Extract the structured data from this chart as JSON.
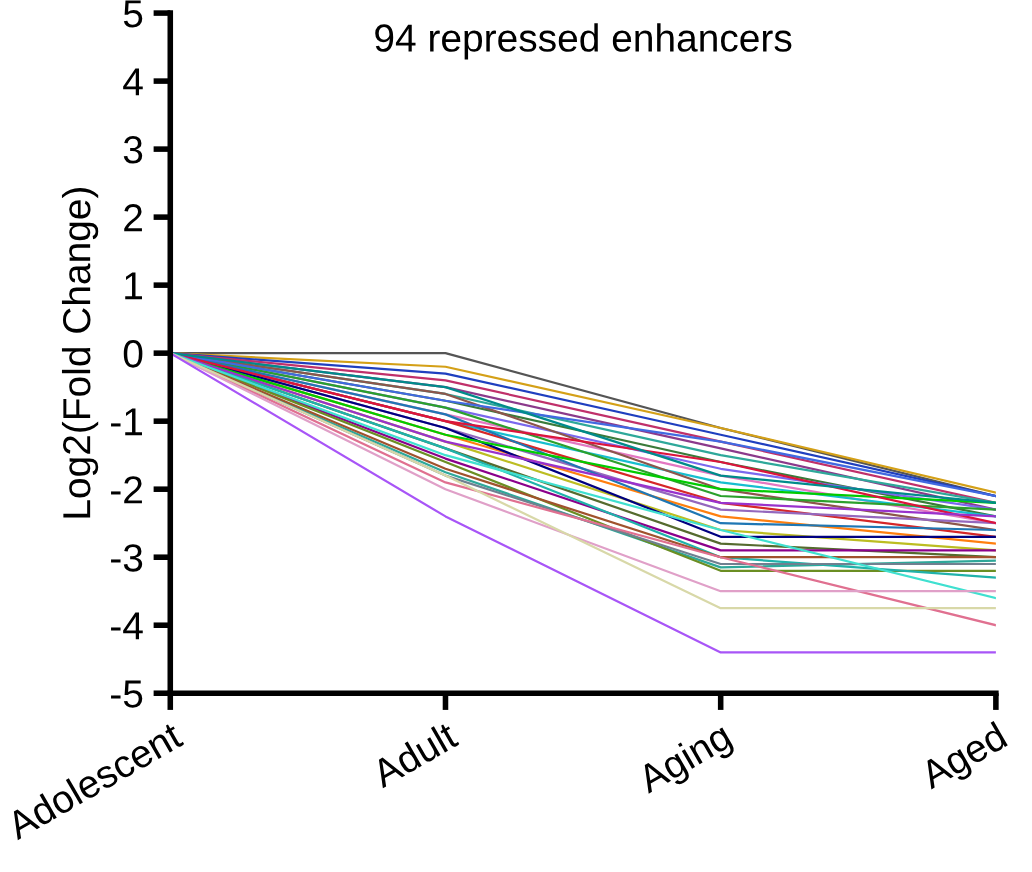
{
  "chart_data": {
    "type": "line",
    "title": "94 repressed enhancers",
    "ylabel": "Log2(Fold Change)",
    "categories": [
      "Adolescent",
      "Adult",
      "Aging",
      "Aged"
    ],
    "ylim": [
      -5,
      5
    ],
    "yticks": [
      -5,
      -4,
      -3,
      -2,
      -1,
      0,
      1,
      2,
      3,
      4,
      5
    ],
    "grid": false,
    "legend": false,
    "marker": "none",
    "line_style": "solid",
    "series": [
      {
        "color": "#555555",
        "values": [
          0,
          0,
          -1.1,
          -2.1
        ]
      },
      {
        "color": "#d4a017",
        "values": [
          0,
          -0.2,
          -1.1,
          -2.05
        ]
      },
      {
        "color": "#1f3fbf",
        "values": [
          0,
          -0.3,
          -1.2,
          -2.1
        ]
      },
      {
        "color": "#c0306a",
        "values": [
          0,
          -0.4,
          -1.3,
          -2.2
        ]
      },
      {
        "color": "#8b3a8b",
        "values": [
          0,
          -0.5,
          -1.4,
          -2.3
        ]
      },
      {
        "color": "#2ea89a",
        "values": [
          0,
          -0.6,
          -1.5,
          -2.2
        ]
      },
      {
        "color": "#3a7a3a",
        "values": [
          0,
          -0.7,
          -1.6,
          -2.4
        ]
      },
      {
        "color": "#7b68ee",
        "values": [
          0,
          -0.8,
          -1.7,
          -2.3
        ]
      },
      {
        "color": "#e377c2",
        "values": [
          0,
          -0.9,
          -1.8,
          -2.5
        ]
      },
      {
        "color": "#17becf",
        "values": [
          0,
          -1.0,
          -1.9,
          -2.4
        ]
      },
      {
        "color": "#8c564b",
        "values": [
          0,
          -0.6,
          -2.0,
          -2.6
        ]
      },
      {
        "color": "#2ca02c",
        "values": [
          0,
          -0.8,
          -2.1,
          -2.3
        ]
      },
      {
        "color": "#d62728",
        "values": [
          0,
          -1.0,
          -2.2,
          -2.7
        ]
      },
      {
        "color": "#9467bd",
        "values": [
          0,
          -1.1,
          -2.3,
          -2.5
        ]
      },
      {
        "color": "#ff7f0e",
        "values": [
          0,
          -1.2,
          -2.4,
          -2.8
        ]
      },
      {
        "color": "#1f77b4",
        "values": [
          0,
          -0.9,
          -2.5,
          -2.6
        ]
      },
      {
        "color": "#bcbd22",
        "values": [
          0,
          -1.3,
          -2.6,
          -2.9
        ]
      },
      {
        "color": "#000080",
        "values": [
          0,
          -1.1,
          -2.7,
          -2.7
        ]
      },
      {
        "color": "#556b2f",
        "values": [
          0,
          -1.4,
          -2.8,
          -3.0
        ]
      },
      {
        "color": "#8b008b",
        "values": [
          0,
          -1.55,
          -2.9,
          -2.9
        ]
      },
      {
        "color": "#2ea89a",
        "values": [
          0,
          -1.75,
          -3.15,
          -3.05
        ]
      },
      {
        "color": "#6b8e23",
        "values": [
          0,
          -1.6,
          -3.2,
          -3.2
        ]
      },
      {
        "color": "#20b2aa",
        "values": [
          0,
          -1.4,
          -3.0,
          -3.3
        ]
      },
      {
        "color": "#a0522d",
        "values": [
          0,
          -1.7,
          -3.0,
          -3.0
        ]
      },
      {
        "color": "#00cc00",
        "values": [
          0,
          -1.2,
          -2.0,
          -2.2
        ]
      },
      {
        "color": "#4169e1",
        "values": [
          0,
          -0.7,
          -1.3,
          -2.1
        ]
      },
      {
        "color": "#dc143c",
        "values": [
          0,
          -1.0,
          -1.6,
          -2.5
        ]
      },
      {
        "color": "#9932cc",
        "values": [
          0,
          -1.3,
          -2.2,
          -2.4
        ]
      },
      {
        "color": "#008b8b",
        "values": [
          0,
          -0.5,
          -1.8,
          -2.2
        ]
      },
      {
        "color": "#708090",
        "values": [
          0,
          -1.8,
          -3.1,
          -3.1
        ]
      },
      {
        "color": "#40e0d0",
        "values": [
          0,
          -1.5,
          -2.6,
          -3.6
        ]
      },
      {
        "color": "#e07090",
        "values": [
          0,
          -1.9,
          -3.0,
          -4.0
        ]
      },
      {
        "color": "#e0a0c8",
        "values": [
          0,
          -2.0,
          -3.5,
          -3.5
        ]
      },
      {
        "color": "#d8d8a8",
        "values": [
          0,
          -1.8,
          -3.75,
          -3.75
        ]
      },
      {
        "color": "#a855f7",
        "values": [
          0,
          -2.4,
          -4.4,
          -4.4
        ]
      }
    ]
  }
}
